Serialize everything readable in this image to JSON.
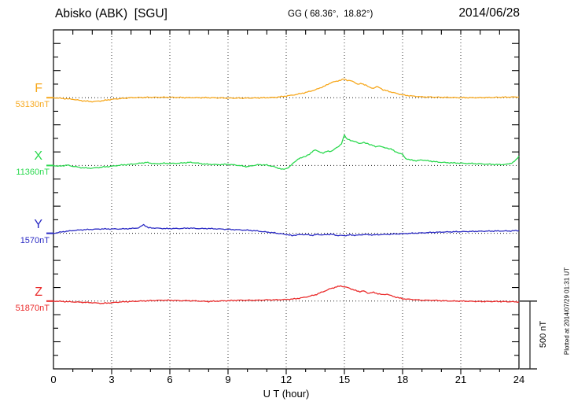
{
  "header": {
    "title": "Abisko (ABK)  [SGU]",
    "coordinates": "GG ( 68.36°,  18.82°)",
    "date": "2014/06/28"
  },
  "footer": {
    "plot_note": "Plotted at 2014/07/29 01:31 UT"
  },
  "chart_data": {
    "type": "line",
    "title": "Abisko (ABK)  [SGU]",
    "station": "Abisko",
    "iaga_code": "ABK",
    "institute": "SGU",
    "date": "2014/06/28",
    "xlabel": "U T (hour)",
    "x_range": [
      0,
      24
    ],
    "x_ticks": [
      0,
      3,
      6,
      9,
      12,
      15,
      18,
      21,
      24
    ],
    "grid": "vertical dotted every 3 h, dotted baseline per component",
    "legend_position": "left margin, one colored label per trace",
    "scale_bar": {
      "label": "500 nT",
      "nT": 500
    },
    "units": "nT (offset from component baseline)",
    "series": [
      {
        "name": "F",
        "baseline_label": "53130nT",
        "baseline_nT": 53130,
        "color": "#f7a81d",
        "points": [
          [
            0,
            0
          ],
          [
            0.5,
            -6
          ],
          [
            1,
            -12
          ],
          [
            1.5,
            -23
          ],
          [
            2,
            -29
          ],
          [
            2.5,
            -23
          ],
          [
            3,
            -12
          ],
          [
            4,
            0
          ],
          [
            5,
            3
          ],
          [
            6,
            3
          ],
          [
            7,
            0
          ],
          [
            8,
            0
          ],
          [
            9,
            -3
          ],
          [
            10,
            -3
          ],
          [
            11,
            0
          ],
          [
            11.5,
            3
          ],
          [
            12,
            12
          ],
          [
            12.5,
            23
          ],
          [
            13,
            38
          ],
          [
            13.5,
            58
          ],
          [
            14,
            87
          ],
          [
            14.3,
            110
          ],
          [
            14.6,
            122
          ],
          [
            14.8,
            128
          ],
          [
            15,
            139
          ],
          [
            15.15,
            128
          ],
          [
            15.3,
            125
          ],
          [
            15.5,
            116
          ],
          [
            15.7,
            99
          ],
          [
            15.9,
            104
          ],
          [
            16.1,
            93
          ],
          [
            16.3,
            75
          ],
          [
            16.5,
            70
          ],
          [
            16.65,
            81
          ],
          [
            16.8,
            75
          ],
          [
            17,
            58
          ],
          [
            17.3,
            46
          ],
          [
            17.6,
            35
          ],
          [
            18,
            20
          ],
          [
            18.5,
            12
          ],
          [
            19,
            6
          ],
          [
            20,
            3
          ],
          [
            21,
            0
          ],
          [
            22,
            0
          ],
          [
            23,
            3
          ],
          [
            24,
            6
          ]
        ]
      },
      {
        "name": "X",
        "baseline_label": "11360nT",
        "baseline_nT": 11360,
        "color": "#2bd94f",
        "points": [
          [
            0,
            0
          ],
          [
            0.3,
            -6
          ],
          [
            0.7,
            3
          ],
          [
            1,
            -6
          ],
          [
            1.5,
            -17
          ],
          [
            2,
            -20
          ],
          [
            2.5,
            -12
          ],
          [
            3,
            -6
          ],
          [
            3.5,
            3
          ],
          [
            4,
            9
          ],
          [
            4.5,
            17
          ],
          [
            4.8,
            23
          ],
          [
            5,
            17
          ],
          [
            5.3,
            12
          ],
          [
            5.7,
            17
          ],
          [
            6,
            15
          ],
          [
            6.5,
            17
          ],
          [
            7,
            23
          ],
          [
            7.3,
            20
          ],
          [
            7.7,
            12
          ],
          [
            8,
            9
          ],
          [
            8.5,
            6
          ],
          [
            9,
            9
          ],
          [
            9.4,
            3
          ],
          [
            9.7,
            -3
          ],
          [
            10,
            -9
          ],
          [
            10.3,
            0
          ],
          [
            10.6,
            6
          ],
          [
            11,
            3
          ],
          [
            11.3,
            -6
          ],
          [
            11.6,
            -20
          ],
          [
            11.8,
            -29
          ],
          [
            12,
            -23
          ],
          [
            12.2,
            -6
          ],
          [
            12.4,
            23
          ],
          [
            12.6,
            46
          ],
          [
            12.8,
            58
          ],
          [
            13,
            70
          ],
          [
            13.2,
            81
          ],
          [
            13.4,
            110
          ],
          [
            13.5,
            116
          ],
          [
            13.7,
            99
          ],
          [
            13.9,
            93
          ],
          [
            14.1,
            104
          ],
          [
            14.3,
            104
          ],
          [
            14.5,
            122
          ],
          [
            14.7,
            139
          ],
          [
            14.85,
            162
          ],
          [
            15,
            226
          ],
          [
            15.1,
            197
          ],
          [
            15.25,
            191
          ],
          [
            15.4,
            180
          ],
          [
            15.6,
            174
          ],
          [
            15.8,
            162
          ],
          [
            16,
            168
          ],
          [
            16.2,
            162
          ],
          [
            16.4,
            151
          ],
          [
            16.6,
            139
          ],
          [
            16.8,
            145
          ],
          [
            17,
            133
          ],
          [
            17.2,
            128
          ],
          [
            17.4,
            122
          ],
          [
            17.6,
            104
          ],
          [
            17.8,
            93
          ],
          [
            18,
            81
          ],
          [
            18.15,
            52
          ],
          [
            18.4,
            41
          ],
          [
            18.7,
            35
          ],
          [
            19,
            41
          ],
          [
            19.3,
            35
          ],
          [
            19.6,
            29
          ],
          [
            20,
            23
          ],
          [
            20.5,
            20
          ],
          [
            21,
            17
          ],
          [
            21.5,
            15
          ],
          [
            22,
            12
          ],
          [
            22.5,
            9
          ],
          [
            23,
            6
          ],
          [
            23.4,
            9
          ],
          [
            23.7,
            23
          ],
          [
            23.85,
            41
          ],
          [
            24,
            70
          ]
        ]
      },
      {
        "name": "Y",
        "baseline_label": "1570nT",
        "baseline_nT": 1570,
        "color": "#2b2bc4",
        "points": [
          [
            0,
            0
          ],
          [
            0.5,
            12
          ],
          [
            1,
            20
          ],
          [
            1.5,
            26
          ],
          [
            2,
            29
          ],
          [
            2.5,
            32
          ],
          [
            3,
            32
          ],
          [
            3.5,
            32
          ],
          [
            4,
            35
          ],
          [
            4.4,
            40
          ],
          [
            4.65,
            64
          ],
          [
            4.9,
            40
          ],
          [
            5.3,
            38
          ],
          [
            5.7,
            35
          ],
          [
            6,
            35
          ],
          [
            6.5,
            35
          ],
          [
            7,
            38
          ],
          [
            7.5,
            35
          ],
          [
            8,
            35
          ],
          [
            8.5,
            32
          ],
          [
            9,
            29
          ],
          [
            9.5,
            26
          ],
          [
            10,
            23
          ],
          [
            10.5,
            17
          ],
          [
            11,
            9
          ],
          [
            11.4,
            3
          ],
          [
            11.7,
            -3
          ],
          [
            12,
            -9
          ],
          [
            12.3,
            -17
          ],
          [
            12.5,
            -12
          ],
          [
            13,
            -9
          ],
          [
            13.3,
            -15
          ],
          [
            13.6,
            -9
          ],
          [
            14,
            -12
          ],
          [
            14.3,
            -6
          ],
          [
            14.6,
            -15
          ],
          [
            15,
            -17
          ],
          [
            15.3,
            -12
          ],
          [
            15.6,
            -15
          ],
          [
            16,
            -9
          ],
          [
            16.5,
            -12
          ],
          [
            17,
            -9
          ],
          [
            17.5,
            -6
          ],
          [
            18,
            -3
          ],
          [
            18.5,
            0
          ],
          [
            19,
            3
          ],
          [
            19.5,
            6
          ],
          [
            20,
            9
          ],
          [
            21,
            12
          ],
          [
            22,
            15
          ],
          [
            23,
            17
          ],
          [
            23.5,
            17
          ],
          [
            24,
            20
          ]
        ]
      },
      {
        "name": "Z",
        "baseline_label": "51870nT",
        "baseline_nT": 51870,
        "color": "#ea2a2a",
        "points": [
          [
            0,
            0
          ],
          [
            0.5,
            -3
          ],
          [
            1,
            -6
          ],
          [
            1.5,
            -9
          ],
          [
            2,
            -12
          ],
          [
            2.5,
            -17
          ],
          [
            3,
            -12
          ],
          [
            3.5,
            -6
          ],
          [
            4,
            -3
          ],
          [
            4.5,
            0
          ],
          [
            5,
            3
          ],
          [
            5.5,
            6
          ],
          [
            6,
            6
          ],
          [
            6.5,
            3
          ],
          [
            7,
            3
          ],
          [
            7.5,
            0
          ],
          [
            8,
            -3
          ],
          [
            8.5,
            0
          ],
          [
            9,
            3
          ],
          [
            9.5,
            6
          ],
          [
            10,
            6
          ],
          [
            10.5,
            6
          ],
          [
            11,
            9
          ],
          [
            11.5,
            9
          ],
          [
            12,
            12
          ],
          [
            12.5,
            17
          ],
          [
            13,
            29
          ],
          [
            13.5,
            46
          ],
          [
            13.8,
            64
          ],
          [
            14,
            75
          ],
          [
            14.3,
            93
          ],
          [
            14.6,
            104
          ],
          [
            14.8,
            113
          ],
          [
            15,
            104
          ],
          [
            15.2,
            99
          ],
          [
            15.5,
            81
          ],
          [
            15.8,
            70
          ],
          [
            16,
            75
          ],
          [
            16.2,
            58
          ],
          [
            16.5,
            64
          ],
          [
            16.8,
            52
          ],
          [
            17,
            46
          ],
          [
            17.2,
            52
          ],
          [
            17.5,
            35
          ],
          [
            18,
            17
          ],
          [
            18.5,
            12
          ],
          [
            19,
            6
          ],
          [
            19.5,
            6
          ],
          [
            20,
            3
          ],
          [
            20.5,
            0
          ],
          [
            21,
            0
          ],
          [
            22,
            -3
          ],
          [
            23,
            -3
          ],
          [
            24,
            -6
          ]
        ]
      }
    ]
  }
}
